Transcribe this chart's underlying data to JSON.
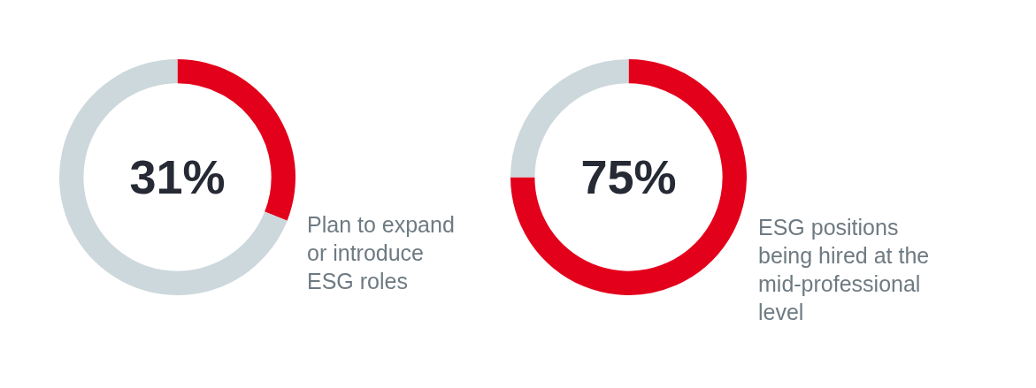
{
  "chart_data": [
    {
      "type": "donut",
      "categories": [
        "Plan to expand or introduce ESG roles",
        null
      ],
      "values": [
        31,
        69
      ],
      "colors": [
        "#e3001b",
        "#ccd8dc"
      ],
      "value_labels": [
        "31%",
        null
      ]
    },
    {
      "type": "donut",
      "categories": [
        "ESG positions being hired at the mid-professional level",
        null
      ],
      "values": [
        75,
        25
      ],
      "colors": [
        "#e3001b",
        "#ccd8dc"
      ],
      "value_labels": [
        "75%",
        null
      ]
    }
  ]
}
